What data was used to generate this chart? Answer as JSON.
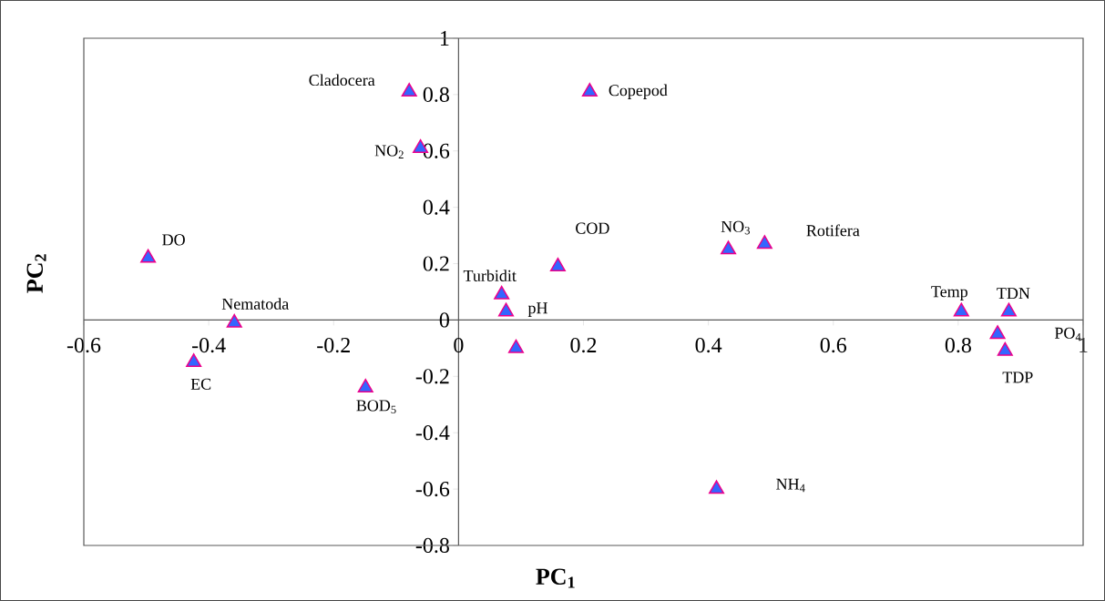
{
  "chart_data": {
    "type": "scatter",
    "xlabel": "PC$_{1}$",
    "ylabel": "PC$_{2}$",
    "x": [
      -0.079,
      0.21,
      -0.061,
      -0.497,
      -0.359,
      -0.424,
      -0.149,
      0.069,
      0.076,
      0.092,
      0.159,
      0.432,
      0.49,
      0.413,
      0.805,
      0.881,
      0.863,
      0.875
    ],
    "values": [
      0.81,
      0.81,
      0.61,
      0.22,
      -0.01,
      -0.15,
      -0.24,
      0.09,
      0.03,
      -0.1,
      0.19,
      0.25,
      0.27,
      -0.6,
      0.03,
      0.03,
      -0.05,
      -0.11
    ],
    "color": "#3366ff",
    "marker": "triangle",
    "xlim": [
      -0.6,
      1
    ],
    "ylim": [
      -0.8,
      1
    ],
    "xticks": [
      -0.6,
      -0.4,
      -0.2,
      0,
      0.2,
      0.4,
      0.6,
      0.8,
      1
    ],
    "yticks": [
      -0.8,
      -0.6,
      -0.4,
      -0.2,
      0,
      0.2,
      0.4,
      0.6,
      0.8,
      1
    ],
    "annotations": [
      {
        "text": "Cladocera",
        "x": -0.079,
        "y": 0.81
      },
      {
        "text": "Copepod",
        "x": 0.21,
        "y": 0.81
      },
      {
        "text": "NO$_{2}$",
        "x": -0.061,
        "y": 0.61
      },
      {
        "text": "DO",
        "x": -0.497,
        "y": 0.22
      },
      {
        "text": "Nematoda",
        "x": -0.359,
        "y": -0.01
      },
      {
        "text": "EC",
        "x": -0.424,
        "y": -0.15
      },
      {
        "text": "BOD$_{5}$",
        "x": -0.149,
        "y": -0.24
      },
      {
        "text": "Turbidit",
        "x": 0.069,
        "y": 0.09
      },
      {
        "text": "pH",
        "x": 0.076,
        "y": 0.03
      },
      {
        "text": "COD",
        "x": 0.159,
        "y": 0.19
      },
      {
        "text": "NO$_{3}$",
        "x": 0.432,
        "y": 0.25
      },
      {
        "text": "Rotifera",
        "x": 0.49,
        "y": 0.27
      },
      "NH$_{4}$",
      {
        "text": "Temp",
        "x": 0.805,
        "y": 0.03
      },
      {
        "text": "TDN",
        "x": 0.881,
        "y": 0.03
      },
      "PO$_{4}$",
      {
        "text": "TDP",
        "x": 0.875,
        "y": -0.11
      }
    ]
  }
}
